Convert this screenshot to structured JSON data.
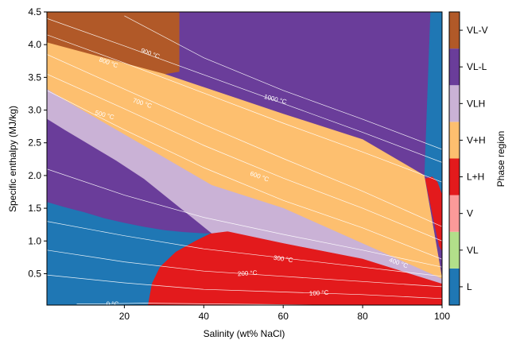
{
  "chart_data": {
    "type": "heatmap",
    "title": "",
    "xlabel": "Salinity (wt% NaCl)",
    "ylabel": "Specific enthalpy (MJ/kg)",
    "xlim": [
      0.5,
      100
    ],
    "ylim": [
      0.02,
      4.5
    ],
    "xticks": [
      20,
      40,
      60,
      80,
      100
    ],
    "yticks": [
      0.5,
      1.0,
      1.5,
      2.0,
      2.5,
      3.0,
      3.5,
      4.0,
      4.5
    ],
    "xtick_labels": [
      "20",
      "40",
      "60",
      "80",
      "100"
    ],
    "ytick_labels": [
      "0.5",
      "1.0",
      "1.5",
      "2.0",
      "2.5",
      "3.0",
      "3.5",
      "4.0",
      "4.5"
    ],
    "colorbar": {
      "label": "Phase region",
      "position": "right",
      "categories": [
        "L",
        "VL",
        "V",
        "L+H",
        "V+H",
        "VLH",
        "VL-L",
        "VL-V"
      ],
      "colors": [
        "#1f77b4",
        "#b2df8a",
        "#fb9a99",
        "#e31a1c",
        "#fdbf6f",
        "#cab2d6",
        "#6a3d9a",
        "#b15928"
      ]
    },
    "regions": [
      {
        "phase": "L",
        "polygon": [
          [
            0.5,
            0.02
          ],
          [
            0.5,
            1.6
          ],
          [
            5,
            1.52
          ],
          [
            10,
            1.44
          ],
          [
            15,
            1.35
          ],
          [
            20,
            1.28
          ],
          [
            25,
            1.22
          ],
          [
            30,
            1.17
          ],
          [
            35,
            1.14
          ],
          [
            40,
            1.12
          ],
          [
            42,
            1.12
          ],
          [
            38,
            1.0
          ],
          [
            33,
            0.83
          ],
          [
            29,
            0.6
          ],
          [
            27,
            0.35
          ],
          [
            26,
            0.02
          ]
        ]
      },
      {
        "phase": "L",
        "polygon": [
          [
            95.5,
            2.0
          ],
          [
            97,
            4.5
          ],
          [
            100,
            4.5
          ],
          [
            100,
            1.7
          ],
          [
            98.8,
            1.9
          ],
          [
            97.5,
            1.98
          ]
        ]
      },
      {
        "phase": "L+H",
        "polygon": [
          [
            26,
            0.02
          ],
          [
            27,
            0.35
          ],
          [
            29,
            0.6
          ],
          [
            33,
            0.83
          ],
          [
            38,
            1.0
          ],
          [
            42,
            1.12
          ],
          [
            46,
            1.15
          ],
          [
            60,
            0.97
          ],
          [
            80,
            0.73
          ],
          [
            100,
            0.42
          ],
          [
            100,
            0.02
          ]
        ]
      },
      {
        "phase": "L+H",
        "polygon": [
          [
            95.8,
            1.95
          ],
          [
            97.5,
            1.98
          ],
          [
            98.8,
            1.9
          ],
          [
            100,
            1.7
          ],
          [
            100,
            0.85
          ],
          [
            99.3,
            0.92
          ],
          [
            98,
            1.3
          ]
        ]
      },
      {
        "phase": "VL-L",
        "polygon": [
          [
            0.5,
            2.87
          ],
          [
            0.5,
            1.6
          ],
          [
            5,
            1.52
          ],
          [
            10,
            1.44
          ],
          [
            15,
            1.35
          ],
          [
            20,
            1.28
          ],
          [
            25,
            1.22
          ],
          [
            30,
            1.17
          ],
          [
            35,
            1.14
          ],
          [
            40,
            1.12
          ],
          [
            42,
            1.12
          ],
          [
            25,
            1.95
          ],
          [
            18,
            2.23
          ],
          [
            10,
            2.52
          ],
          [
            5,
            2.7
          ]
        ]
      },
      {
        "phase": "VL-L",
        "polygon": [
          [
            33.8,
            4.5
          ],
          [
            33.8,
            3.59
          ],
          [
            30,
            3.52
          ],
          [
            60,
            2.94
          ],
          [
            80,
            2.55
          ],
          [
            95.5,
            2.0
          ],
          [
            97,
            4.5
          ]
        ]
      },
      {
        "phase": "VL-V",
        "polygon": [
          [
            0.5,
            4.5
          ],
          [
            0.5,
            4.03
          ],
          [
            10,
            3.85
          ],
          [
            20,
            3.7
          ],
          [
            30,
            3.55
          ],
          [
            33.8,
            3.59
          ],
          [
            33.8,
            4.5
          ]
        ]
      },
      {
        "phase": "V+H",
        "polygon": [
          [
            0.5,
            4.03
          ],
          [
            30,
            3.55
          ],
          [
            60,
            2.94
          ],
          [
            80,
            2.55
          ],
          [
            95.5,
            2.0
          ],
          [
            100,
            0.42
          ],
          [
            60,
            1.5
          ],
          [
            42,
            1.85
          ],
          [
            25,
            2.45
          ],
          [
            15,
            2.8
          ],
          [
            5,
            3.15
          ],
          [
            0.5,
            3.32
          ]
        ]
      },
      {
        "phase": "VLH",
        "polygon": [
          [
            0.5,
            3.32
          ],
          [
            5,
            3.15
          ],
          [
            15,
            2.8
          ],
          [
            25,
            2.45
          ],
          [
            42,
            1.85
          ],
          [
            60,
            1.5
          ],
          [
            100,
            0.42
          ],
          [
            100,
            0.35
          ],
          [
            80,
            0.73
          ],
          [
            60,
            0.97
          ],
          [
            46,
            1.15
          ],
          [
            42,
            1.12
          ],
          [
            25,
            1.95
          ],
          [
            18,
            2.23
          ],
          [
            10,
            2.52
          ],
          [
            5,
            2.7
          ],
          [
            0.5,
            2.87
          ]
        ]
      }
    ],
    "isotherms": [
      {
        "label": "0 °C",
        "points": [
          [
            8,
            0.04
          ],
          [
            15,
            0.04
          ],
          [
            25,
            0.05
          ],
          [
            40,
            0.04
          ],
          [
            70,
            0.02
          ]
        ]
      },
      {
        "label": "100 °C",
        "points": [
          [
            0.5,
            0.48
          ],
          [
            20,
            0.36
          ],
          [
            40,
            0.26
          ],
          [
            60,
            0.22
          ],
          [
            80,
            0.18
          ],
          [
            100,
            0.12
          ]
        ]
      },
      {
        "label": "200 °C",
        "points": [
          [
            0.5,
            0.86
          ],
          [
            20,
            0.68
          ],
          [
            40,
            0.54
          ],
          [
            60,
            0.46
          ],
          [
            80,
            0.38
          ],
          [
            100,
            0.3
          ]
        ]
      },
      {
        "label": "300 °C",
        "points": [
          [
            0.5,
            1.3
          ],
          [
            20,
            1.08
          ],
          [
            40,
            0.88
          ],
          [
            60,
            0.74
          ],
          [
            80,
            0.6
          ],
          [
            100,
            0.46
          ]
        ]
      },
      {
        "label": "400 °C",
        "points": [
          [
            0.5,
            2.1
          ],
          [
            20,
            1.7
          ],
          [
            40,
            1.36
          ],
          [
            60,
            1.1
          ],
          [
            80,
            0.86
          ],
          [
            100,
            0.6
          ]
        ]
      },
      {
        "label": "500 °C",
        "points": [
          [
            0.5,
            3.3
          ],
          [
            20,
            2.7
          ],
          [
            40,
            2.12
          ],
          [
            60,
            1.62
          ],
          [
            80,
            1.2
          ],
          [
            100,
            0.72
          ]
        ]
      },
      {
        "label": "600 °C",
        "points": [
          [
            0.5,
            3.55
          ],
          [
            20,
            3.02
          ],
          [
            40,
            2.46
          ],
          [
            60,
            1.96
          ],
          [
            80,
            1.5
          ],
          [
            100,
            1.0
          ]
        ]
      },
      {
        "label": "700 °C",
        "points": [
          [
            0.5,
            3.85
          ],
          [
            20,
            3.32
          ],
          [
            40,
            2.78
          ],
          [
            60,
            2.26
          ],
          [
            80,
            1.76
          ],
          [
            100,
            1.22
          ]
        ]
      },
      {
        "label": "800 °C",
        "points": [
          [
            0.5,
            4.15
          ],
          [
            20,
            3.72
          ],
          [
            40,
            3.26
          ],
          [
            60,
            2.8
          ],
          [
            80,
            2.36
          ],
          [
            100,
            1.9
          ]
        ]
      },
      {
        "label": "900 °C",
        "points": [
          [
            0.5,
            4.4
          ],
          [
            20,
            3.98
          ],
          [
            40,
            3.54
          ],
          [
            60,
            3.1
          ],
          [
            80,
            2.66
          ],
          [
            100,
            2.2
          ]
        ]
      },
      {
        "label": "1000 °C",
        "points": [
          [
            20,
            4.44
          ],
          [
            40,
            3.8
          ],
          [
            60,
            3.3
          ],
          [
            80,
            2.86
          ],
          [
            100,
            2.4
          ]
        ]
      }
    ],
    "isotherm_label_positions": [
      {
        "label": "0 °C",
        "x": 17,
        "y": 0.03,
        "rotate": 0
      },
      {
        "label": "100 °C",
        "x": 69,
        "y": 0.2,
        "rotate": -3
      },
      {
        "label": "200 °C",
        "x": 51,
        "y": 0.5,
        "rotate": -4
      },
      {
        "label": "300 °C",
        "x": 60,
        "y": 0.72,
        "rotate": 8
      },
      {
        "label": "400 °C",
        "x": 89,
        "y": 0.66,
        "rotate": 20
      },
      {
        "label": "500 °C",
        "x": 15,
        "y": 2.92,
        "rotate": 15
      },
      {
        "label": "600 °C",
        "x": 54,
        "y": 1.98,
        "rotate": 20
      },
      {
        "label": "700 °C",
        "x": 24.5,
        "y": 3.1,
        "rotate": 18
      },
      {
        "label": "800 °C",
        "x": 16,
        "y": 3.72,
        "rotate": 20
      },
      {
        "label": "900 °C",
        "x": 26.5,
        "y": 3.86,
        "rotate": 20
      },
      {
        "label": "1000 °C",
        "x": 58,
        "y": 3.16,
        "rotate": 14
      }
    ]
  }
}
